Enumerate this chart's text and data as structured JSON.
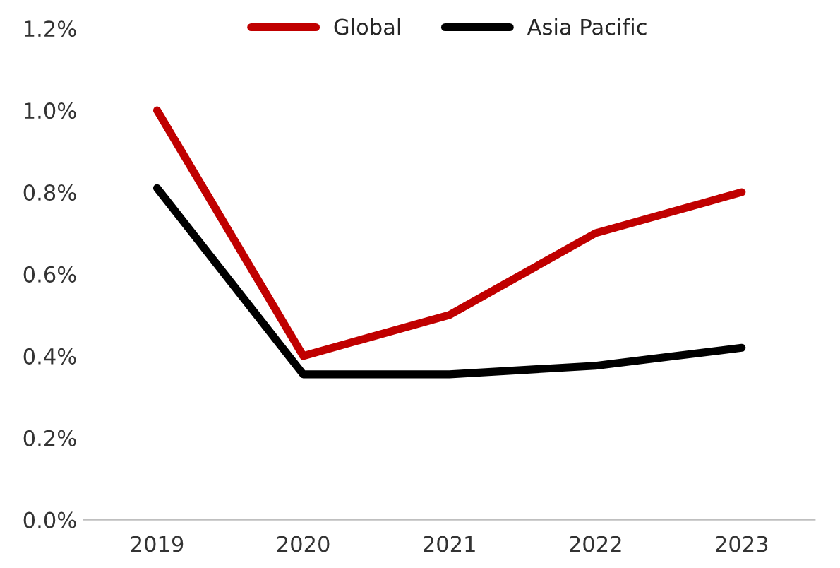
{
  "chart_data": {
    "type": "line",
    "categories": [
      "2019",
      "2020",
      "2021",
      "2022",
      "2023"
    ],
    "series": [
      {
        "name": "Global",
        "color": "#c00000",
        "values": [
          1.0,
          0.4,
          0.5,
          0.7,
          0.8
        ]
      },
      {
        "name": "Asia Pacific",
        "color": "#000000",
        "values": [
          0.81,
          0.355,
          0.355,
          0.376,
          0.42
        ]
      }
    ],
    "ylim": [
      0,
      1.2
    ],
    "yticks": [
      {
        "value": 0,
        "label": "0.0%"
      },
      {
        "value": 0.2,
        "label": "0.2%"
      },
      {
        "value": 0.4,
        "label": "0.4%"
      },
      {
        "value": 0.6,
        "label": "0.6%"
      },
      {
        "value": 0.8,
        "label": "0.8%"
      },
      {
        "value": 1.0,
        "label": "1.0%"
      },
      {
        "value": 1.2,
        "label": "1.2%"
      }
    ],
    "grid": false,
    "legend": "top",
    "marker": "none",
    "line_style": "solid"
  }
}
